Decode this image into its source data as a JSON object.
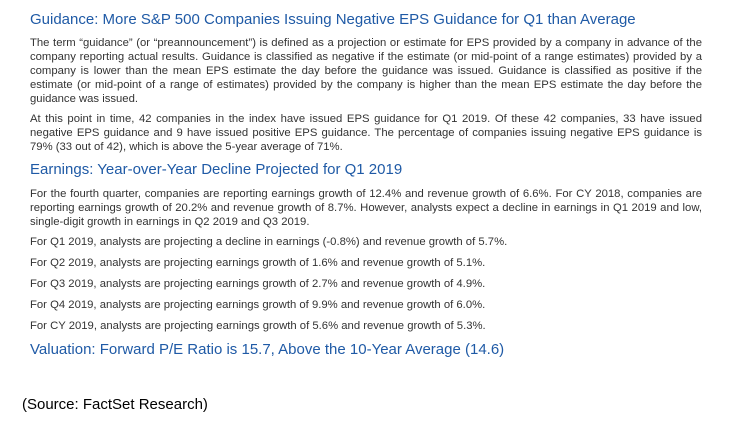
{
  "section_guidance": {
    "heading": "Guidance: More S&P 500 Companies Issuing Negative EPS Guidance for Q1 than Average",
    "paragraph_1": "The term “guidance” (or “preannouncement”) is defined as a projection or estimate for EPS provided by a company in advance of the company reporting actual results. Guidance is classified as negative if the estimate (or mid-point of a range estimates) provided by a company is lower than the mean EPS estimate the day before the guidance was issued. Guidance is classified as positive if the estimate (or mid-point of a range of estimates) provided by the company is higher than the mean EPS estimate the day before the guidance was issued.",
    "paragraph_2": "At this point in time, 42 companies in the index have issued EPS guidance for Q1 2019. Of these 42 companies, 33 have issued negative EPS guidance and 9 have issued positive EPS guidance. The percentage of companies issuing negative EPS guidance is 79% (33 out of 42), which is above the 5-year average of 71%."
  },
  "section_earnings": {
    "heading": "Earnings: Year-over-Year Decline Projected for Q1 2019",
    "paragraph_1": "For the fourth quarter, companies are reporting earnings growth of 12.4% and revenue growth of 6.6%. For CY 2018, companies are reporting earnings growth of 20.2% and revenue growth of 8.7%. However, analysts expect a decline in earnings in Q1 2019 and low, single-digit growth in earnings in Q2 2019 and Q3 2019.",
    "lines": [
      "For Q1 2019, analysts are projecting a decline in earnings (-0.8%) and revenue growth of 5.7%.",
      "For Q2 2019, analysts are projecting earnings growth of 1.6% and revenue growth of 5.1%.",
      "For Q3 2019, analysts are projecting earnings growth of 2.7% and revenue growth of 4.9%.",
      "For Q4 2019, analysts are projecting earnings growth of 9.9% and revenue growth of 6.0%.",
      "For CY 2019, analysts are projecting earnings growth of 5.6% and revenue growth of 5.3%."
    ]
  },
  "section_valuation": {
    "heading": "Valuation: Forward P/E Ratio is 15.7, Above the 10-Year Average (14.6)"
  },
  "source_note": "(Source: FactSet Research)",
  "colors": {
    "heading": "#1f5aa6",
    "body_text": "#333333",
    "source_text": "#000000"
  }
}
